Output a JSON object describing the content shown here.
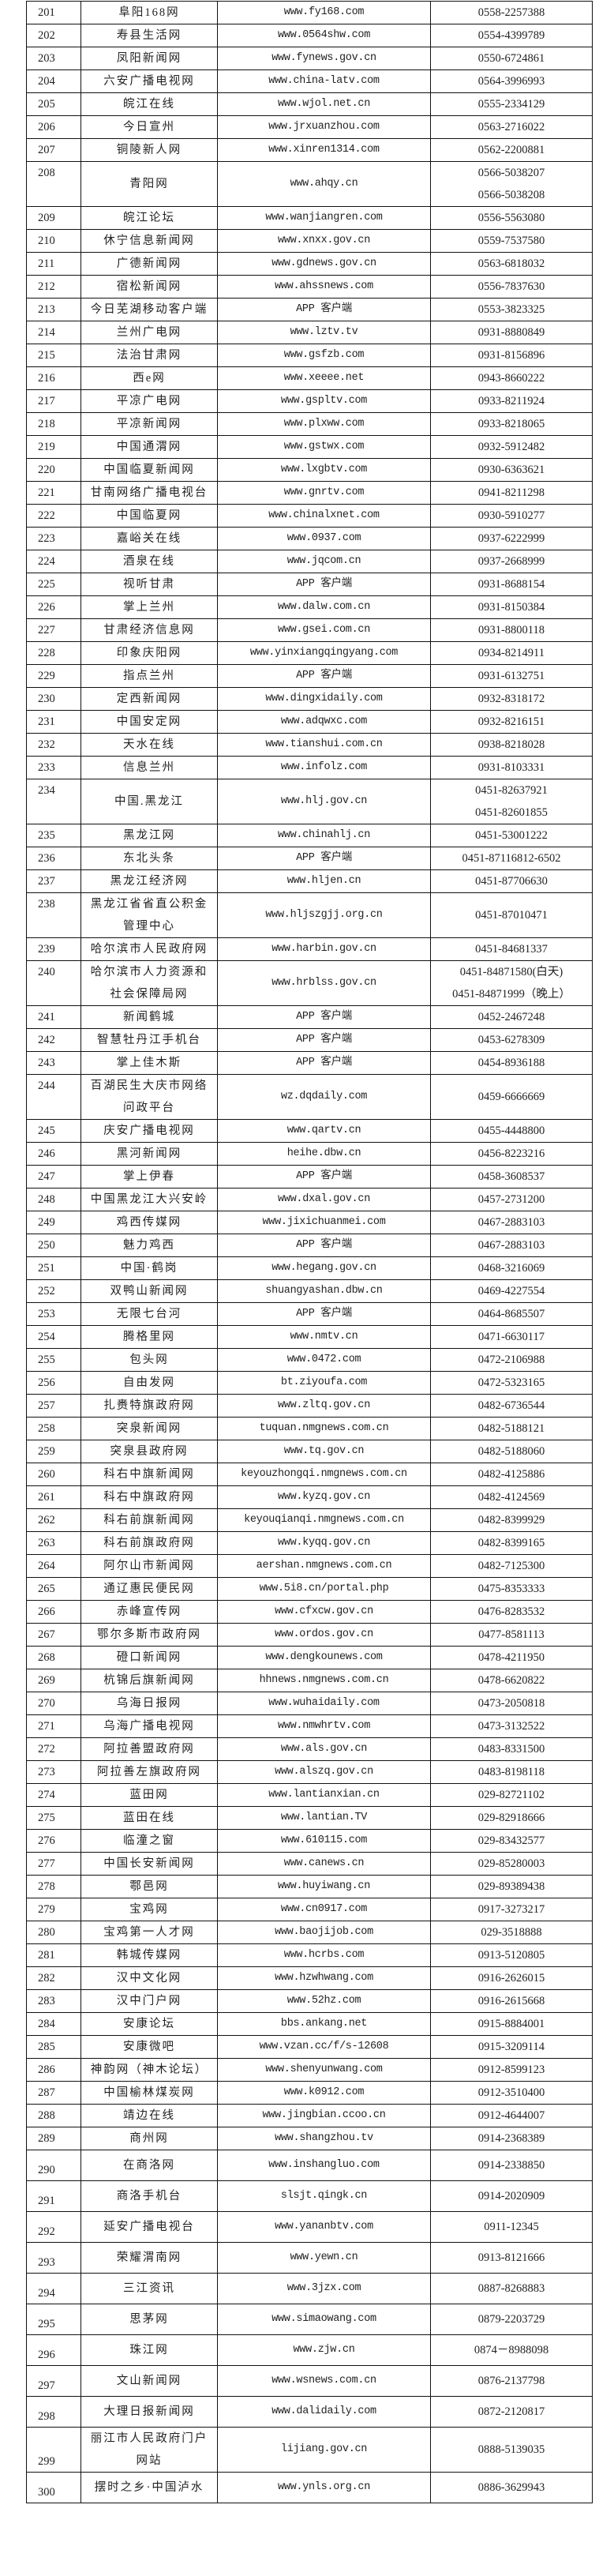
{
  "rows": [
    {
      "no": "201",
      "name": "阜阳168网",
      "url": "www.fy168.com",
      "phone": "0558-2257388"
    },
    {
      "no": "202",
      "name": "寿县生活网",
      "url": "www.0564shw.com",
      "phone": "0554-4399789"
    },
    {
      "no": "203",
      "name": "凤阳新闻网",
      "url": "www.fynews.gov.cn",
      "phone": "0550-6724861"
    },
    {
      "no": "204",
      "name": "六安广播电视网",
      "url": "www.china-latv.com",
      "phone": "0564-3996993"
    },
    {
      "no": "205",
      "name": "皖江在线",
      "url": "www.wjol.net.cn",
      "phone": "0555-2334129"
    },
    {
      "no": "206",
      "name": "今日宣州",
      "url": "www.jrxuanzhou.com",
      "phone": "0563-2716022"
    },
    {
      "no": "207",
      "name": "铜陵新人网",
      "url": "www.xinren1314.com",
      "phone": "0562-2200881"
    },
    {
      "no": "208",
      "name": "青阳网",
      "url": "www.ahqy.cn",
      "phone": "0566-5038207\n0566-5038208"
    },
    {
      "no": "209",
      "name": "皖江论坛",
      "url": "www.wanjiangren.com",
      "phone": "0556-5563080"
    },
    {
      "no": "210",
      "name": "休宁信息新闻网",
      "url": "www.xnxx.gov.cn",
      "phone": "0559-7537580"
    },
    {
      "no": "211",
      "name": "广德新闻网",
      "url": "www.gdnews.gov.cn",
      "phone": "0563-6818032"
    },
    {
      "no": "212",
      "name": "宿松新闻网",
      "url": "www.ahssnews.com",
      "phone": "0556-7837630"
    },
    {
      "no": "213",
      "name": "今日芜湖移动客户端",
      "url": "APP 客户端",
      "phone": "0553-3823325"
    },
    {
      "no": "214",
      "name": "兰州广电网",
      "url": "www.lztv.tv",
      "phone": "0931-8880849"
    },
    {
      "no": "215",
      "name": "法治甘肃网",
      "url": "www.gsfzb.com",
      "phone": "0931-8156896"
    },
    {
      "no": "216",
      "name": "西e网",
      "url": "www.xeeee.net",
      "phone": "0943-8660222"
    },
    {
      "no": "217",
      "name": "平凉广电网",
      "url": "www.gspltv.com",
      "phone": "0933-8211924"
    },
    {
      "no": "218",
      "name": "平凉新闻网",
      "url": "www.plxww.com",
      "phone": "0933-8218065"
    },
    {
      "no": "219",
      "name": "中国通渭网",
      "url": "www.gstwx.com",
      "phone": "0932-5912482"
    },
    {
      "no": "220",
      "name": "中国临夏新闻网",
      "url": "www.lxgbtv.com",
      "phone": "0930-6363621"
    },
    {
      "no": "221",
      "name": "甘南网络广播电视台",
      "url": "www.gnrtv.com",
      "phone": "0941-8211298"
    },
    {
      "no": "222",
      "name": "中国临夏网",
      "url": "www.chinalxnet.com",
      "phone": "0930-5910277"
    },
    {
      "no": "223",
      "name": "嘉峪关在线",
      "url": "www.0937.com",
      "phone": "0937-6222999"
    },
    {
      "no": "224",
      "name": "酒泉在线",
      "url": "www.jqcom.cn",
      "phone": "0937-2668999"
    },
    {
      "no": "225",
      "name": "视听甘肃",
      "url": "APP 客户端",
      "phone": "0931-8688154"
    },
    {
      "no": "226",
      "name": "掌上兰州",
      "url": "www.dalw.com.cn",
      "phone": "0931-8150384"
    },
    {
      "no": "227",
      "name": "甘肃经济信息网",
      "url": "www.gsei.com.cn",
      "phone": "0931-8800118"
    },
    {
      "no": "228",
      "name": "印象庆阳网",
      "url": "www.yinxiangqingyang.com",
      "phone": "0934-8214911"
    },
    {
      "no": "229",
      "name": "指点兰州",
      "url": "APP 客户端",
      "phone": "0931-6132751"
    },
    {
      "no": "230",
      "name": "定西新闻网",
      "url": "www.dingxidaily.com",
      "phone": "0932-8318172"
    },
    {
      "no": "231",
      "name": "中国安定网",
      "url": "www.adqwxc.com",
      "phone": "0932-8216151"
    },
    {
      "no": "232",
      "name": "天水在线",
      "url": "www.tianshui.com.cn",
      "phone": "0938-8218028"
    },
    {
      "no": "233",
      "name": "信息兰州",
      "url": "www.infolz.com",
      "phone": "0931-8103331"
    },
    {
      "no": "234",
      "name": "中国.黑龙江",
      "url": "www.hlj.gov.cn",
      "phone": "0451-82637921\n0451-82601855"
    },
    {
      "no": "235",
      "name": "黑龙江网",
      "url": "www.chinahlj.cn",
      "phone": "0451-53001222"
    },
    {
      "no": "236",
      "name": "东北头条",
      "url": "APP 客户端",
      "phone": "0451-87116812-6502"
    },
    {
      "no": "237",
      "name": "黑龙江经济网",
      "url": "www.hljen.cn",
      "phone": "0451-87706630"
    },
    {
      "no": "238",
      "name": "黑龙江省省直公积金管理中心",
      "url": "www.hljszgjj.org.cn",
      "phone": "0451-87010471"
    },
    {
      "no": "239",
      "name": "哈尔滨市人民政府网",
      "url": "www.harbin.gov.cn",
      "phone": "0451-84681337"
    },
    {
      "no": "240",
      "name": "哈尔滨市人力资源和社会保障局网",
      "url": "www.hrblss.gov.cn",
      "phone": "0451-84871580(白天)\n0451-84871999（晚上）"
    },
    {
      "no": "241",
      "name": "新闻鹤城",
      "url": "APP 客户端",
      "phone": "0452-2467248"
    },
    {
      "no": "242",
      "name": "智慧牡丹江手机台",
      "url": "APP 客户端",
      "phone": "0453-6278309"
    },
    {
      "no": "243",
      "name": "掌上佳木斯",
      "url": "APP 客户端",
      "phone": "0454-8936188"
    },
    {
      "no": "244",
      "name": "百湖民生大庆市网络问政平台",
      "url": "wz.dqdaily.com",
      "phone": "0459-6666669"
    },
    {
      "no": "245",
      "name": "庆安广播电视网",
      "url": "www.qartv.cn",
      "phone": "0455-4448800"
    },
    {
      "no": "246",
      "name": "黑河新闻网",
      "url": "heihe.dbw.cn",
      "phone": "0456-8223216"
    },
    {
      "no": "247",
      "name": "掌上伊春",
      "url": "APP 客户端",
      "phone": "0458-3608537"
    },
    {
      "no": "248",
      "name": "中国黑龙江大兴安岭",
      "url": "www.dxal.gov.cn",
      "phone": "0457-2731200"
    },
    {
      "no": "249",
      "name": "鸡西传媒网",
      "url": "www.jixichuanmei.com",
      "phone": "0467-2883103"
    },
    {
      "no": "250",
      "name": "魅力鸡西",
      "url": "APP 客户端",
      "phone": "0467-2883103"
    },
    {
      "no": "251",
      "name": "中国·鹤岗",
      "url": "www.hegang.gov.cn",
      "phone": "0468-3216069"
    },
    {
      "no": "252",
      "name": "双鸭山新闻网",
      "url": "shuangyashan.dbw.cn",
      "phone": "0469-4227554"
    },
    {
      "no": "253",
      "name": "无限七台河",
      "url": "APP 客户端",
      "phone": "0464-8685507"
    },
    {
      "no": "254",
      "name": "腾格里网",
      "url": "www.nmtv.cn",
      "phone": "0471-6630117"
    },
    {
      "no": "255",
      "name": "包头网",
      "url": "www.0472.com",
      "phone": "0472-2106988"
    },
    {
      "no": "256",
      "name": "自由发网",
      "url": "bt.ziyoufa.com",
      "phone": "0472-5323165"
    },
    {
      "no": "257",
      "name": "扎赉特旗政府网",
      "url": "www.zltq.gov.cn",
      "phone": "0482-6736544"
    },
    {
      "no": "258",
      "name": "突泉新闻网",
      "url": "tuquan.nmgnews.com.cn",
      "phone": "0482-5188121"
    },
    {
      "no": "259",
      "name": "突泉县政府网",
      "url": "www.tq.gov.cn",
      "phone": "0482-5188060"
    },
    {
      "no": "260",
      "name": "科右中旗新闻网",
      "url": "keyouzhongqi.nmgnews.com.cn",
      "phone": "0482-4125886"
    },
    {
      "no": "261",
      "name": "科右中旗政府网",
      "url": "www.kyzq.gov.cn",
      "phone": "0482-4124569"
    },
    {
      "no": "262",
      "name": "科右前旗新闻网",
      "url": "keyouqianqi.nmgnews.com.cn",
      "phone": "0482-8399929"
    },
    {
      "no": "263",
      "name": "科右前旗政府网",
      "url": "www.kyqq.gov.cn",
      "phone": "0482-8399165"
    },
    {
      "no": "264",
      "name": "阿尔山市新闻网",
      "url": "aershan.nmgnews.com.cn",
      "phone": "0482-7125300"
    },
    {
      "no": "265",
      "name": "通辽惠民便民网",
      "url": "www.5i8.cn/portal.php",
      "phone": "0475-8353333"
    },
    {
      "no": "266",
      "name": "赤峰宣传网",
      "url": "www.cfxcw.gov.cn",
      "phone": "0476-8283532"
    },
    {
      "no": "267",
      "name": "鄂尔多斯市政府网",
      "url": "www.ordos.gov.cn",
      "phone": "0477-8581113"
    },
    {
      "no": "268",
      "name": "磴口新闻网",
      "url": "www.dengkounews.com",
      "phone": "0478-4211950"
    },
    {
      "no": "269",
      "name": "杭锦后旗新闻网",
      "url": "hhnews.nmgnews.com.cn",
      "phone": "0478-6620822"
    },
    {
      "no": "270",
      "name": "乌海日报网",
      "url": "www.wuhaidaily.com",
      "phone": "0473-2050818"
    },
    {
      "no": "271",
      "name": "乌海广播电视网",
      "url": "www.nmwhrtv.com",
      "phone": "0473-3132522"
    },
    {
      "no": "272",
      "name": "阿拉善盟政府网",
      "url": "www.als.gov.cn",
      "phone": "0483-8331500"
    },
    {
      "no": "273",
      "name": "阿拉善左旗政府网",
      "url": "www.alszq.gov.cn",
      "phone": "0483-8198118"
    },
    {
      "no": "274",
      "name": "蓝田网",
      "url": "www.lantianxian.cn",
      "phone": "029-82721102"
    },
    {
      "no": "275",
      "name": "蓝田在线",
      "url": "www.lantian.TV",
      "phone": "029-82918666"
    },
    {
      "no": "276",
      "name": "临潼之窗",
      "url": "www.610115.com",
      "phone": "029-83432577"
    },
    {
      "no": "277",
      "name": "中国长安新闻网",
      "url": "www.canews.cn",
      "phone": "029-85280003"
    },
    {
      "no": "278",
      "name": "鄠邑网",
      "url": "www.huyiwang.cn",
      "phone": "029-89389438"
    },
    {
      "no": "279",
      "name": "宝鸡网",
      "url": "www.cn0917.com",
      "phone": "0917-3273217"
    },
    {
      "no": "280",
      "name": "宝鸡第一人才网",
      "url": "www.baojijob.com",
      "phone": "029-3518888"
    },
    {
      "no": "281",
      "name": "韩城传媒网",
      "url": "www.hcrbs.com",
      "phone": "0913-5120805"
    },
    {
      "no": "282",
      "name": "汉中文化网",
      "url": "www.hzwhwang.com",
      "phone": "0916-2626015"
    },
    {
      "no": "283",
      "name": "汉中门户网",
      "url": "www.52hz.com",
      "phone": "0916-2615668"
    },
    {
      "no": "284",
      "name": "安康论坛",
      "url": "bbs.ankang.net",
      "phone": "0915-8884001"
    },
    {
      "no": "285",
      "name": "安康微吧",
      "url": "www.vzan.cc/f/s-12608",
      "phone": "0915-3209114"
    },
    {
      "no": "286",
      "name": "神韵网（神木论坛）",
      "url": "www.shenyunwang.com",
      "phone": "0912-8599123"
    },
    {
      "no": "287",
      "name": "中国榆林煤炭网",
      "url": "www.k0912.com",
      "phone": "0912-3510400"
    },
    {
      "no": "288",
      "name": "靖边在线",
      "url": "www.jingbian.ccoo.cn",
      "phone": "0912-4644007"
    },
    {
      "no": "289",
      "name": "商州网",
      "url": "www.shangzhou.tv",
      "phone": "0914-2368389"
    },
    {
      "no": "290",
      "name": "在商洛网",
      "url": "www.inshangluo.com",
      "phone": "0914-2338850"
    },
    {
      "no": "291",
      "name": "商洛手机台",
      "url": "slsjt.qingk.cn",
      "phone": "0914-2020909"
    },
    {
      "no": "292",
      "name": "延安广播电视台",
      "url": "www.yananbtv.com",
      "phone": "0911-12345"
    },
    {
      "no": "293",
      "name": "荣耀渭南网",
      "url": "www.yewn.cn",
      "phone": "0913-8121666"
    },
    {
      "no": "294",
      "name": "三江资讯",
      "url": "www.3jzx.com",
      "phone": "0887-8268883"
    },
    {
      "no": "295",
      "name": "思茅网",
      "url": "www.simaowang.com",
      "phone": "0879-2203729"
    },
    {
      "no": "296",
      "name": "珠江网",
      "url": "www.zjw.cn",
      "phone": "0874－8988098"
    },
    {
      "no": "297",
      "name": "文山新闻网",
      "url": "www.wsnews.com.cn",
      "phone": "0876-2137798"
    },
    {
      "no": "298",
      "name": "大理日报新闻网",
      "url": "www.dalidaily.com",
      "phone": "0872-2120817"
    },
    {
      "no": "299",
      "name": "丽江市人民政府门户网站",
      "url": "lijiang.gov.cn",
      "phone": "0888-5139035"
    },
    {
      "no": "300",
      "name": "摆时之乡·中国泸水",
      "url": "www.ynls.org.cn",
      "phone": "0886-3629943"
    }
  ]
}
